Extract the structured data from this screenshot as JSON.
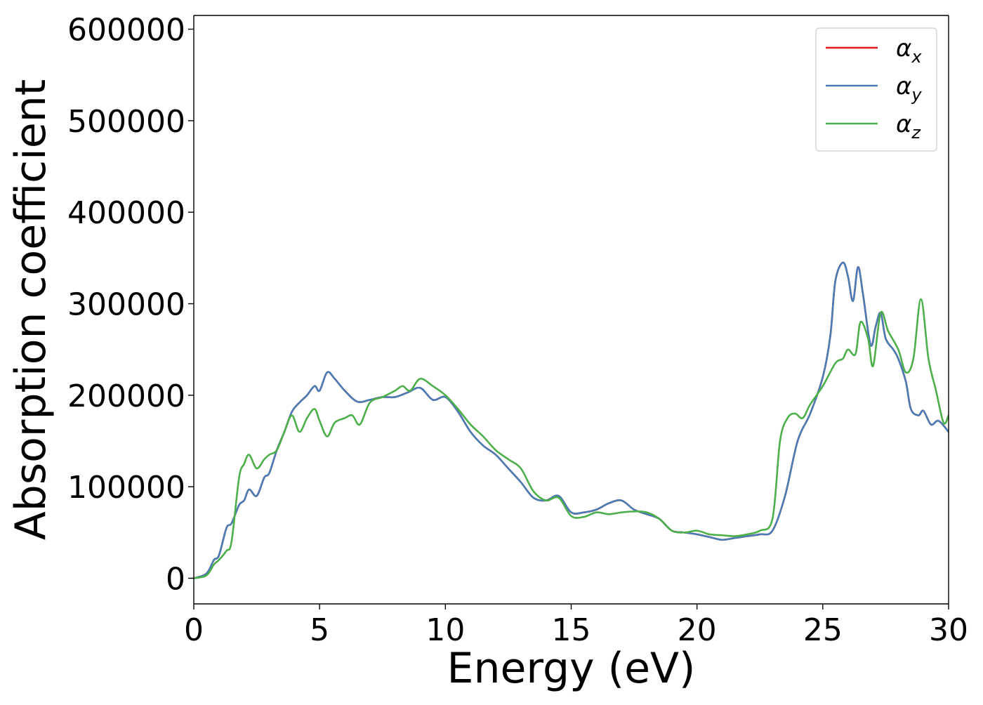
{
  "chart_data": {
    "type": "line",
    "title": "",
    "xlabel": "Energy (eV)",
    "ylabel": "Absorption coefficient",
    "xlim": [
      0,
      30
    ],
    "ylim": [
      -28000,
      615000
    ],
    "xticks": [
      0,
      5,
      10,
      15,
      20,
      25,
      30
    ],
    "yticks": [
      0,
      100000,
      200000,
      300000,
      400000,
      500000,
      600000
    ],
    "grid": false,
    "legend_position": "top-right",
    "series": [
      {
        "name": "αx",
        "legend_symbol": "α",
        "legend_subscript": "x",
        "color": "#e41a1c",
        "x": [
          0,
          0.5,
          0.8,
          1.0,
          1.3,
          1.5,
          1.8,
          2.0,
          2.2,
          2.5,
          2.8,
          3.0,
          3.3,
          3.6,
          3.9,
          4.2,
          4.5,
          4.8,
          5.0,
          5.3,
          5.6,
          6.0,
          6.5,
          7.0,
          7.5,
          8.0,
          8.5,
          9.0,
          9.5,
          10.0,
          10.5,
          11.0,
          11.5,
          12.0,
          12.5,
          13.0,
          13.5,
          14.0,
          14.5,
          15.0,
          15.5,
          16.0,
          16.5,
          17.0,
          17.5,
          18.0,
          18.5,
          19.0,
          19.5,
          20.0,
          20.5,
          21.0,
          21.5,
          22.0,
          22.5,
          23.0,
          23.5,
          24.0,
          24.5,
          25.0,
          25.3,
          25.5,
          25.8,
          26.0,
          26.2,
          26.4,
          26.6,
          26.9,
          27.1,
          27.3,
          27.5,
          27.8,
          28.0,
          28.3,
          28.5,
          28.8,
          29.0,
          29.3,
          29.6,
          30.0
        ],
        "values": [
          0,
          5000,
          20000,
          25000,
          55000,
          60000,
          80000,
          85000,
          97000,
          90000,
          110000,
          115000,
          140000,
          160000,
          182000,
          192000,
          200000,
          210000,
          205000,
          225000,
          218000,
          205000,
          193000,
          195000,
          198000,
          198000,
          203000,
          208000,
          195000,
          198000,
          182000,
          160000,
          145000,
          135000,
          120000,
          105000,
          88000,
          85000,
          90000,
          72000,
          72000,
          75000,
          82000,
          85000,
          75000,
          70000,
          65000,
          52000,
          50000,
          48000,
          45000,
          42000,
          44000,
          46000,
          48000,
          52000,
          90000,
          150000,
          180000,
          220000,
          265000,
          325000,
          345000,
          330000,
          303000,
          340000,
          310000,
          255000,
          275000,
          290000,
          262000,
          250000,
          240000,
          215000,
          185000,
          178000,
          183000,
          168000,
          172000,
          160000
        ]
      },
      {
        "name": "αy",
        "legend_symbol": "α",
        "legend_subscript": "y",
        "color": "#4a7db5",
        "x": [
          0,
          0.5,
          0.8,
          1.0,
          1.3,
          1.5,
          1.8,
          2.0,
          2.2,
          2.5,
          2.8,
          3.0,
          3.3,
          3.6,
          3.9,
          4.2,
          4.5,
          4.8,
          5.0,
          5.3,
          5.6,
          6.0,
          6.5,
          7.0,
          7.5,
          8.0,
          8.5,
          9.0,
          9.5,
          10.0,
          10.5,
          11.0,
          11.5,
          12.0,
          12.5,
          13.0,
          13.5,
          14.0,
          14.5,
          15.0,
          15.5,
          16.0,
          16.5,
          17.0,
          17.5,
          18.0,
          18.5,
          19.0,
          19.5,
          20.0,
          20.5,
          21.0,
          21.5,
          22.0,
          22.5,
          23.0,
          23.5,
          24.0,
          24.5,
          25.0,
          25.3,
          25.5,
          25.8,
          26.0,
          26.2,
          26.4,
          26.6,
          26.9,
          27.1,
          27.3,
          27.5,
          27.8,
          28.0,
          28.3,
          28.5,
          28.8,
          29.0,
          29.3,
          29.6,
          30.0
        ],
        "values": [
          0,
          5000,
          20000,
          25000,
          55000,
          60000,
          80000,
          85000,
          97000,
          90000,
          110000,
          115000,
          140000,
          160000,
          182000,
          192000,
          200000,
          210000,
          205000,
          225000,
          218000,
          205000,
          193000,
          195000,
          198000,
          198000,
          203000,
          208000,
          195000,
          198000,
          182000,
          160000,
          145000,
          135000,
          120000,
          105000,
          88000,
          85000,
          90000,
          72000,
          72000,
          75000,
          82000,
          85000,
          75000,
          70000,
          65000,
          52000,
          50000,
          48000,
          45000,
          42000,
          44000,
          46000,
          48000,
          52000,
          90000,
          150000,
          180000,
          220000,
          265000,
          325000,
          345000,
          330000,
          303000,
          340000,
          310000,
          255000,
          275000,
          290000,
          262000,
          250000,
          240000,
          215000,
          185000,
          178000,
          183000,
          168000,
          172000,
          160000
        ]
      },
      {
        "name": "αz",
        "legend_symbol": "α",
        "legend_subscript": "z",
        "color": "#4daf4a",
        "x": [
          0,
          0.5,
          0.8,
          1.0,
          1.3,
          1.5,
          1.8,
          2.0,
          2.2,
          2.5,
          2.8,
          3.0,
          3.3,
          3.6,
          3.9,
          4.2,
          4.5,
          4.8,
          5.0,
          5.3,
          5.6,
          6.0,
          6.3,
          6.6,
          7.0,
          7.5,
          8.0,
          8.3,
          8.6,
          9.0,
          9.5,
          10.0,
          10.5,
          11.0,
          11.5,
          12.0,
          12.5,
          13.0,
          13.5,
          14.0,
          14.5,
          15.0,
          15.5,
          16.0,
          16.5,
          17.0,
          17.5,
          18.0,
          18.5,
          19.0,
          19.5,
          20.0,
          20.5,
          21.0,
          21.5,
          22.0,
          22.5,
          23.0,
          23.3,
          23.6,
          23.9,
          24.2,
          24.5,
          25.0,
          25.5,
          25.8,
          26.0,
          26.3,
          26.5,
          26.8,
          27.0,
          27.3,
          27.6,
          28.0,
          28.3,
          28.6,
          28.9,
          29.2,
          29.5,
          29.8,
          30.0
        ],
        "values": [
          0,
          3000,
          15000,
          20000,
          30000,
          40000,
          110000,
          125000,
          135000,
          120000,
          130000,
          135000,
          140000,
          160000,
          178000,
          160000,
          175000,
          185000,
          172000,
          155000,
          170000,
          175000,
          178000,
          168000,
          192000,
          198000,
          205000,
          210000,
          205000,
          218000,
          210000,
          200000,
          185000,
          168000,
          155000,
          140000,
          130000,
          120000,
          95000,
          85000,
          88000,
          68000,
          67000,
          72000,
          70000,
          72000,
          73000,
          72000,
          65000,
          52000,
          50000,
          52000,
          48000,
          47000,
          46000,
          48000,
          52000,
          65000,
          150000,
          175000,
          180000,
          175000,
          190000,
          210000,
          235000,
          240000,
          250000,
          245000,
          280000,
          262000,
          232000,
          290000,
          270000,
          250000,
          225000,
          240000,
          305000,
          240000,
          205000,
          170000,
          178000
        ]
      }
    ]
  }
}
